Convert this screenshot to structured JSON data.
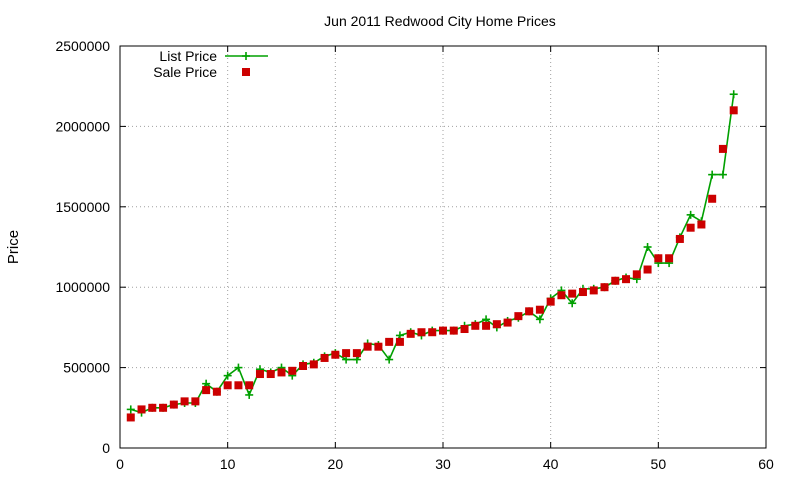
{
  "chart_data": {
    "type": "line",
    "title": "Jun 2011 Redwood City Home Prices",
    "xlabel": "",
    "ylabel": "Price",
    "xlim": [
      0,
      60
    ],
    "ylim": [
      0,
      2500000
    ],
    "x_ticks": [
      0,
      10,
      20,
      30,
      40,
      50,
      60
    ],
    "y_ticks": [
      0,
      500000,
      1000000,
      1500000,
      2000000,
      2500000
    ],
    "grid": true,
    "legend_position": "top-left",
    "series": [
      {
        "name": "List Price",
        "style": "line-with-plus-markers",
        "color": "#00a000",
        "x": [
          1,
          2,
          3,
          4,
          5,
          6,
          7,
          8,
          9,
          10,
          11,
          12,
          13,
          14,
          15,
          16,
          17,
          18,
          19,
          20,
          21,
          22,
          23,
          24,
          25,
          26,
          27,
          28,
          29,
          30,
          31,
          32,
          33,
          34,
          35,
          36,
          37,
          38,
          39,
          40,
          41,
          42,
          43,
          44,
          45,
          46,
          47,
          48,
          49,
          50,
          51,
          52,
          53,
          54,
          55,
          56,
          57
        ],
        "values": [
          240000,
          220000,
          250000,
          250000,
          270000,
          280000,
          280000,
          400000,
          350000,
          450000,
          500000,
          330000,
          490000,
          470000,
          500000,
          450000,
          520000,
          530000,
          570000,
          590000,
          550000,
          550000,
          650000,
          640000,
          550000,
          700000,
          720000,
          700000,
          730000,
          730000,
          730000,
          760000,
          770000,
          800000,
          750000,
          790000,
          810000,
          850000,
          800000,
          930000,
          980000,
          900000,
          990000,
          990000,
          1000000,
          1040000,
          1060000,
          1050000,
          1250000,
          1150000,
          1150000,
          1310000,
          1450000,
          1410000,
          1700000,
          1700000,
          2200000
        ]
      },
      {
        "name": "Sale Price",
        "style": "square-markers",
        "color": "#cc0000",
        "x": [
          1,
          2,
          3,
          4,
          5,
          6,
          7,
          8,
          9,
          10,
          11,
          12,
          13,
          14,
          15,
          16,
          17,
          18,
          19,
          20,
          21,
          22,
          23,
          24,
          25,
          26,
          27,
          28,
          29,
          30,
          31,
          32,
          33,
          34,
          35,
          36,
          37,
          38,
          39,
          40,
          41,
          42,
          43,
          44,
          45,
          46,
          47,
          48,
          49,
          50,
          51,
          52,
          53,
          54,
          55,
          56,
          57
        ],
        "values": [
          190000,
          240000,
          250000,
          250000,
          270000,
          290000,
          290000,
          360000,
          350000,
          390000,
          390000,
          390000,
          460000,
          460000,
          470000,
          480000,
          510000,
          520000,
          560000,
          580000,
          590000,
          590000,
          630000,
          630000,
          660000,
          660000,
          710000,
          720000,
          720000,
          730000,
          730000,
          740000,
          760000,
          760000,
          770000,
          780000,
          820000,
          850000,
          860000,
          910000,
          950000,
          960000,
          970000,
          980000,
          1000000,
          1040000,
          1050000,
          1080000,
          1110000,
          1180000,
          1180000,
          1300000,
          1370000,
          1390000,
          1550000,
          1860000,
          2100000
        ]
      }
    ]
  }
}
